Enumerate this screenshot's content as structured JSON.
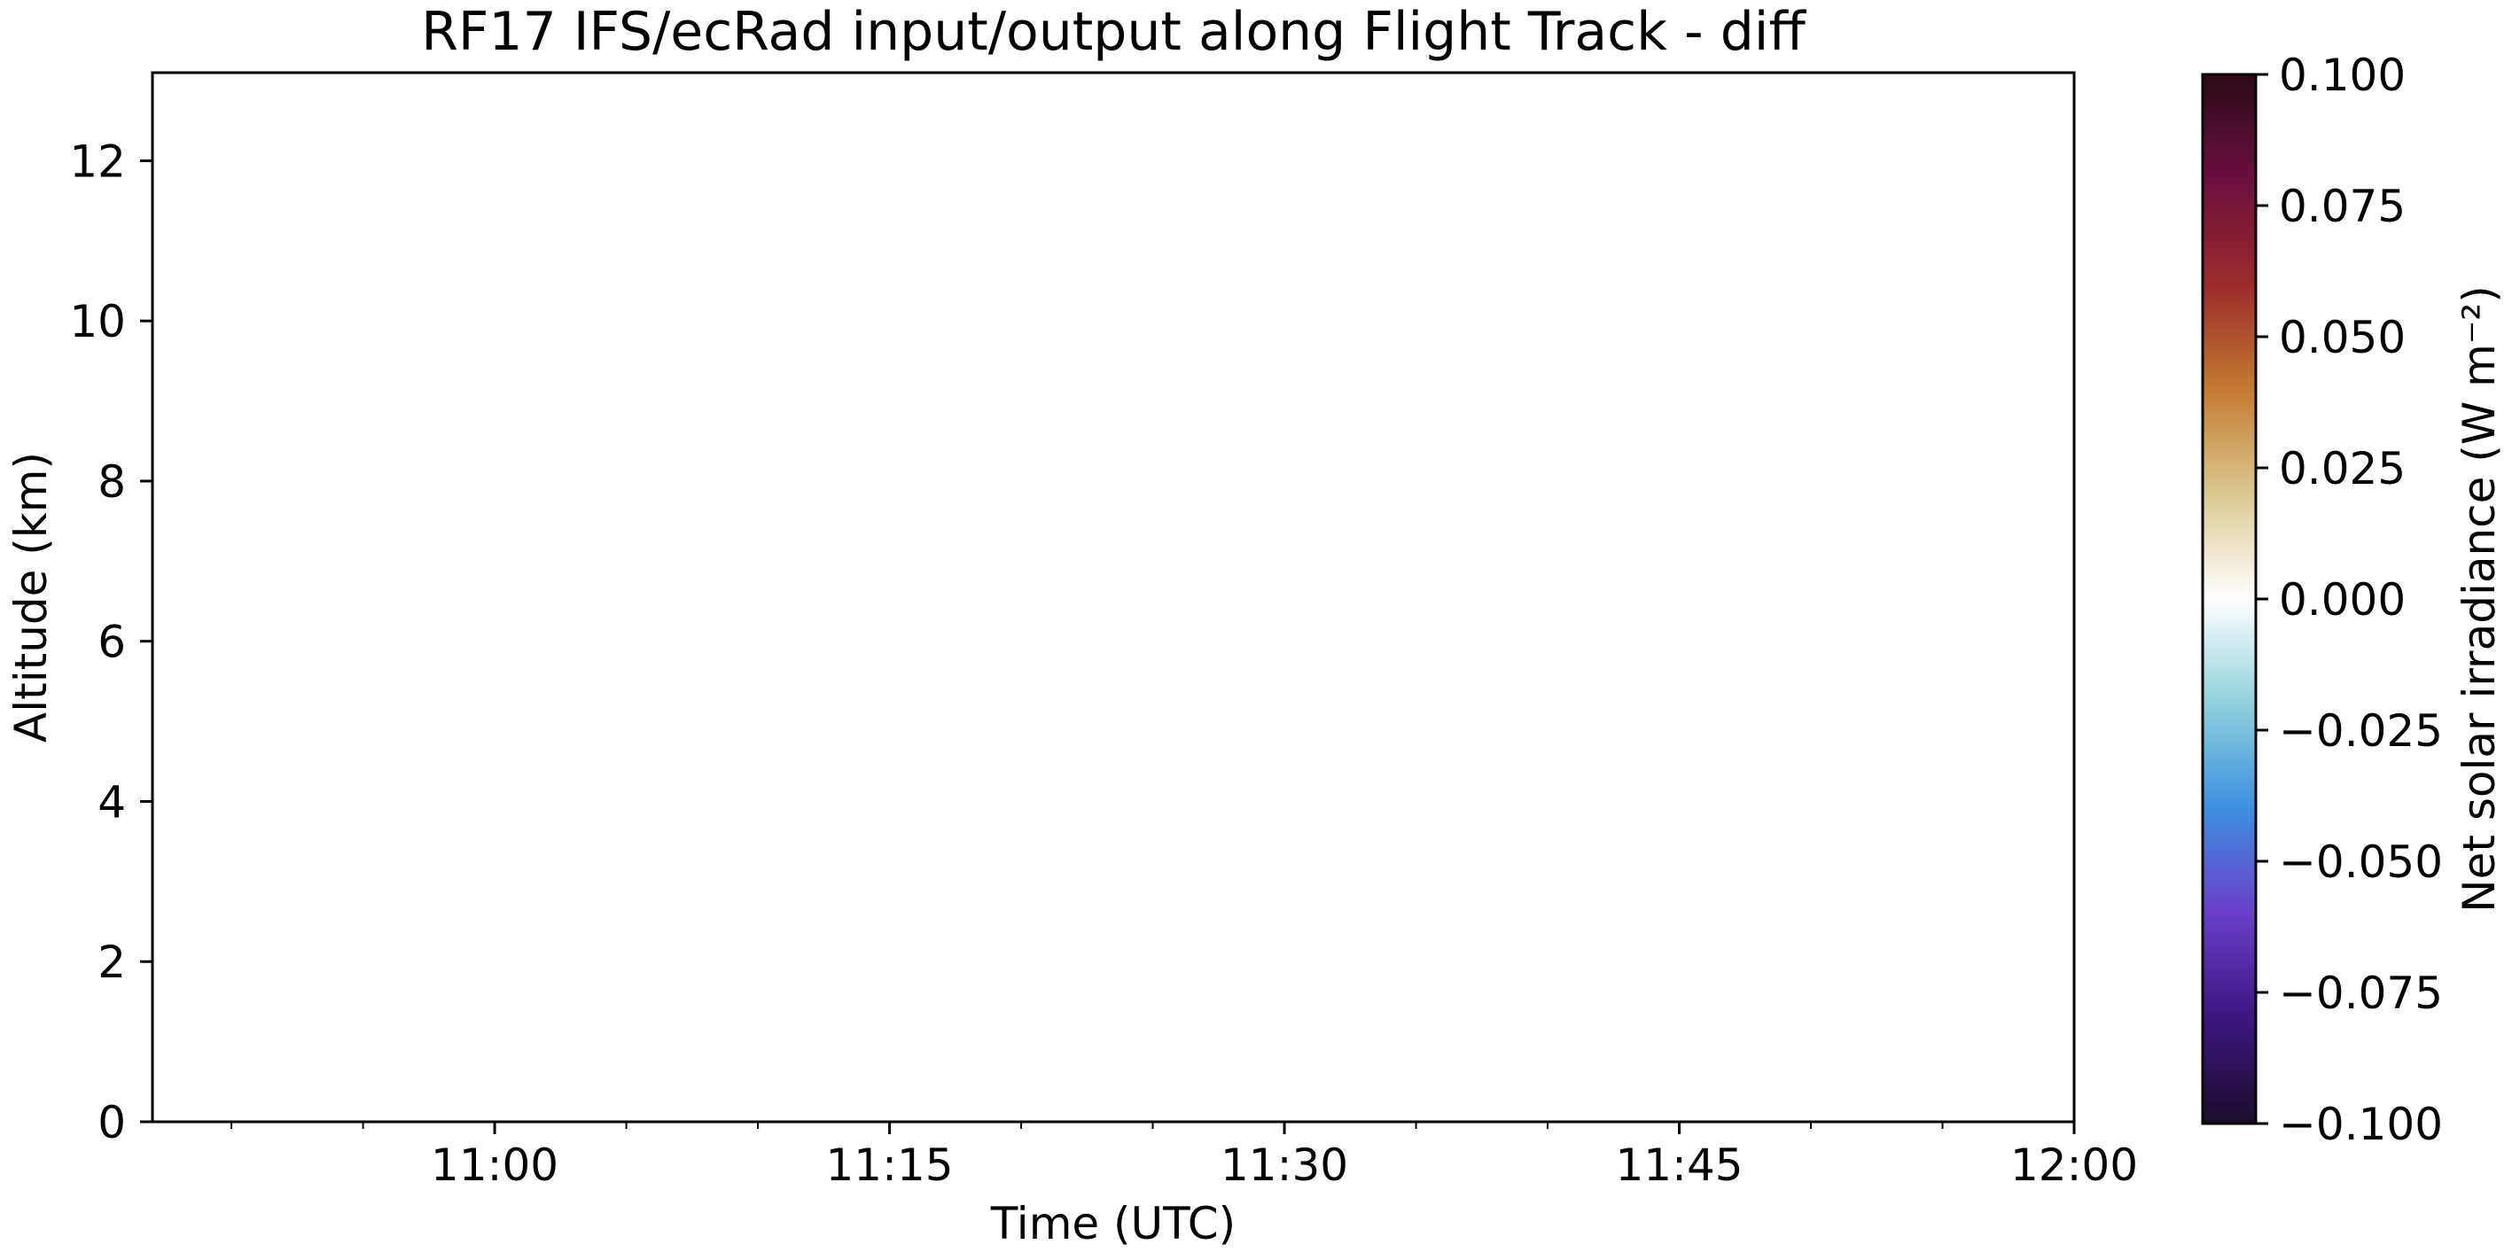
{
  "chart_data": {
    "type": "heatmap",
    "title": "RF17 IFS/ecRad input/output along Flight Track - diff",
    "xlabel": "Time (UTC)",
    "ylabel": "Altitude (km)",
    "x_range": [
      "10:47",
      "12:00"
    ],
    "ylim": [
      0,
      13.1
    ],
    "x_ticks": [
      "11:00",
      "11:15",
      "11:30",
      "11:45",
      "12:00"
    ],
    "x_minor_tick_minutes": 5,
    "y_ticks": [
      "0",
      "2",
      "4",
      "6",
      "8",
      "10",
      "12"
    ],
    "grid": false,
    "values": [],
    "colorbar": {
      "label": "Net solar irradiance (W m⁻²)",
      "range": [
        -0.1,
        0.1
      ],
      "ticks": [
        "−0.100",
        "−0.075",
        "−0.050",
        "−0.025",
        "0.000",
        "0.025",
        "0.050",
        "0.075",
        "0.100"
      ],
      "colormap": [
        "#1a0d2b",
        "#3d1580",
        "#6a3ec9",
        "#3c8fe0",
        "#8fd0dc",
        "#ffffff",
        "#dcc890",
        "#c47a30",
        "#9b2a2a",
        "#6b0f3e",
        "#2b0a17"
      ]
    }
  }
}
